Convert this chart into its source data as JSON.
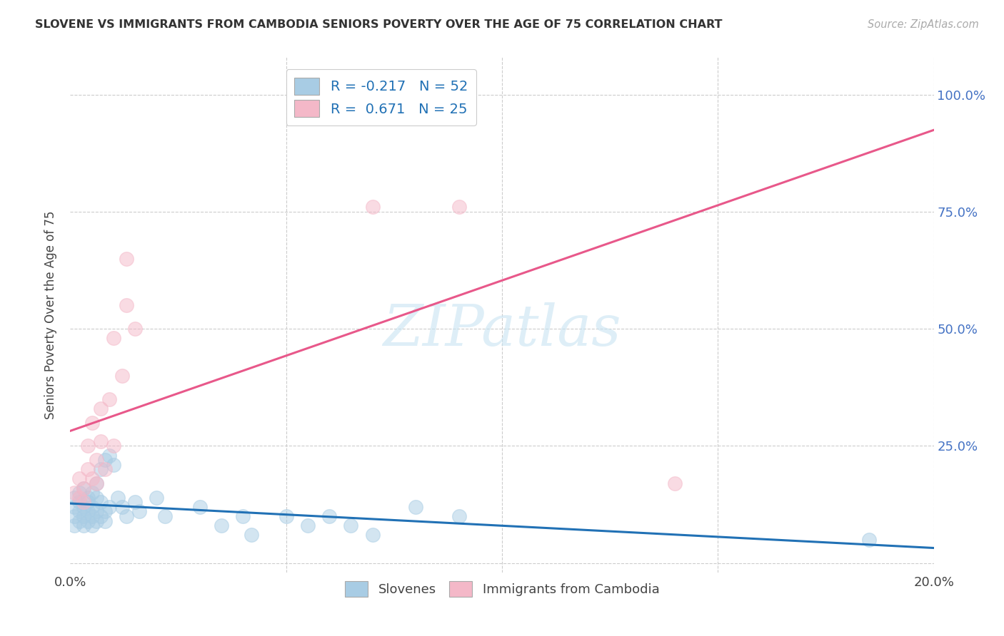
{
  "title": "SLOVENE VS IMMIGRANTS FROM CAMBODIA SENIORS POVERTY OVER THE AGE OF 75 CORRELATION CHART",
  "source": "Source: ZipAtlas.com",
  "ylabel": "Seniors Poverty Over the Age of 75",
  "xlim": [
    0.0,
    0.2
  ],
  "ylim": [
    -0.02,
    1.08
  ],
  "yticks": [
    0.0,
    0.25,
    0.5,
    0.75,
    1.0
  ],
  "ytick_labels": [
    "",
    "25.0%",
    "50.0%",
    "75.0%",
    "100.0%"
  ],
  "xticks": [
    0.0,
    0.05,
    0.1,
    0.15,
    0.2
  ],
  "xtick_labels": [
    "0.0%",
    "",
    "",
    "",
    "20.0%"
  ],
  "legend_blue_label": "R = -0.217   N = 52",
  "legend_pink_label": "R =  0.671   N = 25",
  "watermark": "ZIPatlas",
  "blue_color": "#a8cce4",
  "pink_color": "#f4b8c8",
  "blue_line_color": "#2171b5",
  "pink_line_color": "#e8588a",
  "slovene_points": [
    [
      0.001,
      0.12
    ],
    [
      0.001,
      0.1
    ],
    [
      0.001,
      0.08
    ],
    [
      0.001,
      0.14
    ],
    [
      0.002,
      0.13
    ],
    [
      0.002,
      0.11
    ],
    [
      0.002,
      0.09
    ],
    [
      0.002,
      0.15
    ],
    [
      0.003,
      0.12
    ],
    [
      0.003,
      0.1
    ],
    [
      0.003,
      0.16
    ],
    [
      0.003,
      0.08
    ],
    [
      0.004,
      0.14
    ],
    [
      0.004,
      0.09
    ],
    [
      0.004,
      0.11
    ],
    [
      0.004,
      0.13
    ],
    [
      0.005,
      0.15
    ],
    [
      0.005,
      0.1
    ],
    [
      0.005,
      0.08
    ],
    [
      0.005,
      0.12
    ],
    [
      0.006,
      0.14
    ],
    [
      0.006,
      0.11
    ],
    [
      0.006,
      0.09
    ],
    [
      0.006,
      0.17
    ],
    [
      0.007,
      0.13
    ],
    [
      0.007,
      0.1
    ],
    [
      0.007,
      0.2
    ],
    [
      0.008,
      0.22
    ],
    [
      0.008,
      0.11
    ],
    [
      0.008,
      0.09
    ],
    [
      0.009,
      0.23
    ],
    [
      0.009,
      0.12
    ],
    [
      0.01,
      0.21
    ],
    [
      0.011,
      0.14
    ],
    [
      0.012,
      0.12
    ],
    [
      0.013,
      0.1
    ],
    [
      0.015,
      0.13
    ],
    [
      0.016,
      0.11
    ],
    [
      0.02,
      0.14
    ],
    [
      0.022,
      0.1
    ],
    [
      0.03,
      0.12
    ],
    [
      0.035,
      0.08
    ],
    [
      0.04,
      0.1
    ],
    [
      0.042,
      0.06
    ],
    [
      0.05,
      0.1
    ],
    [
      0.055,
      0.08
    ],
    [
      0.06,
      0.1
    ],
    [
      0.065,
      0.08
    ],
    [
      0.07,
      0.06
    ],
    [
      0.08,
      0.12
    ],
    [
      0.09,
      0.1
    ],
    [
      0.185,
      0.05
    ]
  ],
  "cambodia_points": [
    [
      0.001,
      0.15
    ],
    [
      0.002,
      0.14
    ],
    [
      0.002,
      0.18
    ],
    [
      0.003,
      0.16
    ],
    [
      0.003,
      0.13
    ],
    [
      0.004,
      0.2
    ],
    [
      0.004,
      0.25
    ],
    [
      0.005,
      0.18
    ],
    [
      0.005,
      0.3
    ],
    [
      0.006,
      0.22
    ],
    [
      0.006,
      0.17
    ],
    [
      0.007,
      0.33
    ],
    [
      0.007,
      0.26
    ],
    [
      0.008,
      0.2
    ],
    [
      0.009,
      0.35
    ],
    [
      0.01,
      0.25
    ],
    [
      0.01,
      0.48
    ],
    [
      0.012,
      0.4
    ],
    [
      0.013,
      0.55
    ],
    [
      0.013,
      0.65
    ],
    [
      0.015,
      0.5
    ],
    [
      0.07,
      0.76
    ],
    [
      0.08,
      1.0
    ],
    [
      0.09,
      0.76
    ],
    [
      0.14,
      0.17
    ]
  ]
}
